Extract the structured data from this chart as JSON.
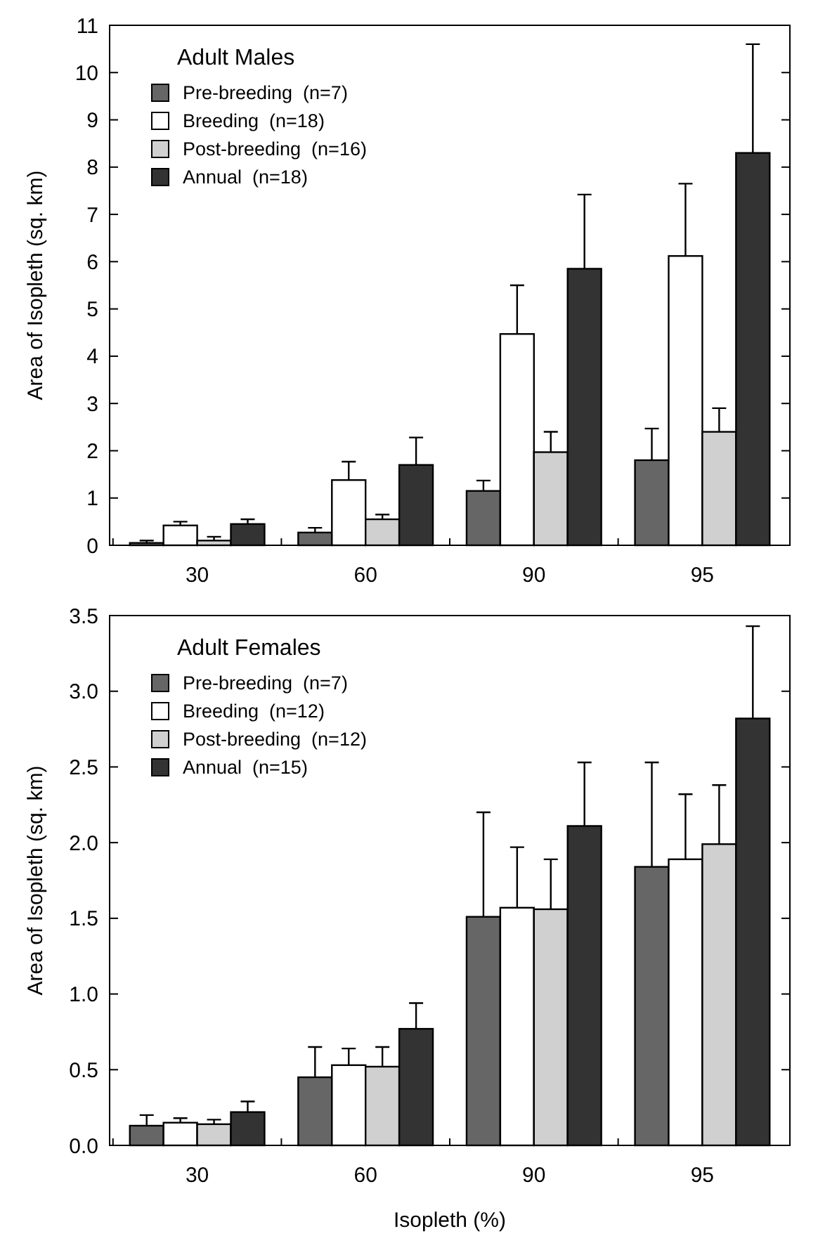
{
  "chart_data": [
    {
      "type": "bar",
      "legend_title": "Adult Males",
      "ylabel": "Area of Isopleth (sq. km)",
      "categories": [
        "30",
        "60",
        "90",
        "95"
      ],
      "ylim": [
        0,
        11
      ],
      "yticks": [
        0,
        1,
        2,
        3,
        4,
        5,
        6,
        7,
        8,
        9,
        10,
        11
      ],
      "legend": "top left",
      "series": [
        {
          "name": "Pre-breeding  (n=7)",
          "color": "#666666",
          "values": [
            0.05,
            0.27,
            1.15,
            1.8
          ],
          "errors": [
            [
              0.05,
              0.1
            ],
            [
              0.27,
              0.37
            ],
            [
              1.15,
              1.37
            ],
            [
              1.8,
              2.47
            ]
          ]
        },
        {
          "name": "Breeding  (n=18)",
          "color": "#ffffff",
          "values": [
            0.42,
            1.38,
            4.47,
            6.12
          ],
          "errors": [
            [
              0.42,
              0.5
            ],
            [
              1.38,
              1.77
            ],
            [
              4.47,
              5.5
            ],
            [
              6.12,
              7.65
            ]
          ]
        },
        {
          "name": "Post-breeding  (n=16)",
          "color": "#d0d0d0",
          "values": [
            0.1,
            0.55,
            1.97,
            2.4
          ],
          "errors": [
            [
              0.1,
              0.18
            ],
            [
              0.55,
              0.65
            ],
            [
              1.97,
              2.4
            ],
            [
              2.4,
              2.9
            ]
          ]
        },
        {
          "name": "Annual  (n=18)",
          "color": "#333333",
          "values": [
            0.45,
            1.7,
            5.85,
            8.3
          ],
          "errors": [
            [
              0.45,
              0.55
            ],
            [
              1.7,
              2.28
            ],
            [
              5.85,
              7.42
            ],
            [
              8.3,
              10.6
            ]
          ]
        }
      ]
    },
    {
      "type": "bar",
      "legend_title": "Adult Females",
      "ylabel": "Area of Isopleth (sq. km)",
      "xlabel": "Isopleth (%)",
      "categories": [
        "30",
        "60",
        "90",
        "95"
      ],
      "ylim": [
        0,
        3.5
      ],
      "yticks": [
        {
          "value": 0,
          "label": "0.0"
        },
        0.5,
        {
          "value": 1,
          "label": "1.0"
        },
        1.5,
        {
          "value": 2,
          "label": "2.0"
        },
        2.5,
        {
          "value": 3,
          "label": "3.0"
        },
        3.5
      ],
      "legend": "top left",
      "series": [
        {
          "name": "Pre-breeding  (n=7)",
          "color": "#666666",
          "values": [
            0.13,
            0.45,
            1.51,
            1.84
          ],
          "errors": [
            [
              0.13,
              0.2
            ],
            [
              0.45,
              0.65
            ],
            [
              1.51,
              2.2
            ],
            [
              1.84,
              2.53
            ]
          ]
        },
        {
          "name": "Breeding  (n=12)",
          "color": "#ffffff",
          "values": [
            0.15,
            0.53,
            1.57,
            1.89
          ],
          "errors": [
            [
              0.15,
              0.18
            ],
            [
              0.53,
              0.64
            ],
            [
              1.57,
              1.97
            ],
            [
              1.89,
              2.32
            ]
          ]
        },
        {
          "name": "Post-breeding  (n=12)",
          "color": "#d0d0d0",
          "values": [
            0.14,
            0.52,
            1.56,
            1.99
          ],
          "errors": [
            [
              0.14,
              0.17
            ],
            [
              0.52,
              0.65
            ],
            [
              1.56,
              1.89
            ],
            [
              1.99,
              2.38
            ]
          ]
        },
        {
          "name": "Annual  (n=15)",
          "color": "#333333",
          "values": [
            0.22,
            0.77,
            2.11,
            2.82
          ],
          "errors": [
            [
              0.22,
              0.29
            ],
            [
              0.77,
              0.94
            ],
            [
              2.11,
              2.53
            ],
            [
              2.82,
              3.43
            ]
          ]
        }
      ]
    }
  ]
}
